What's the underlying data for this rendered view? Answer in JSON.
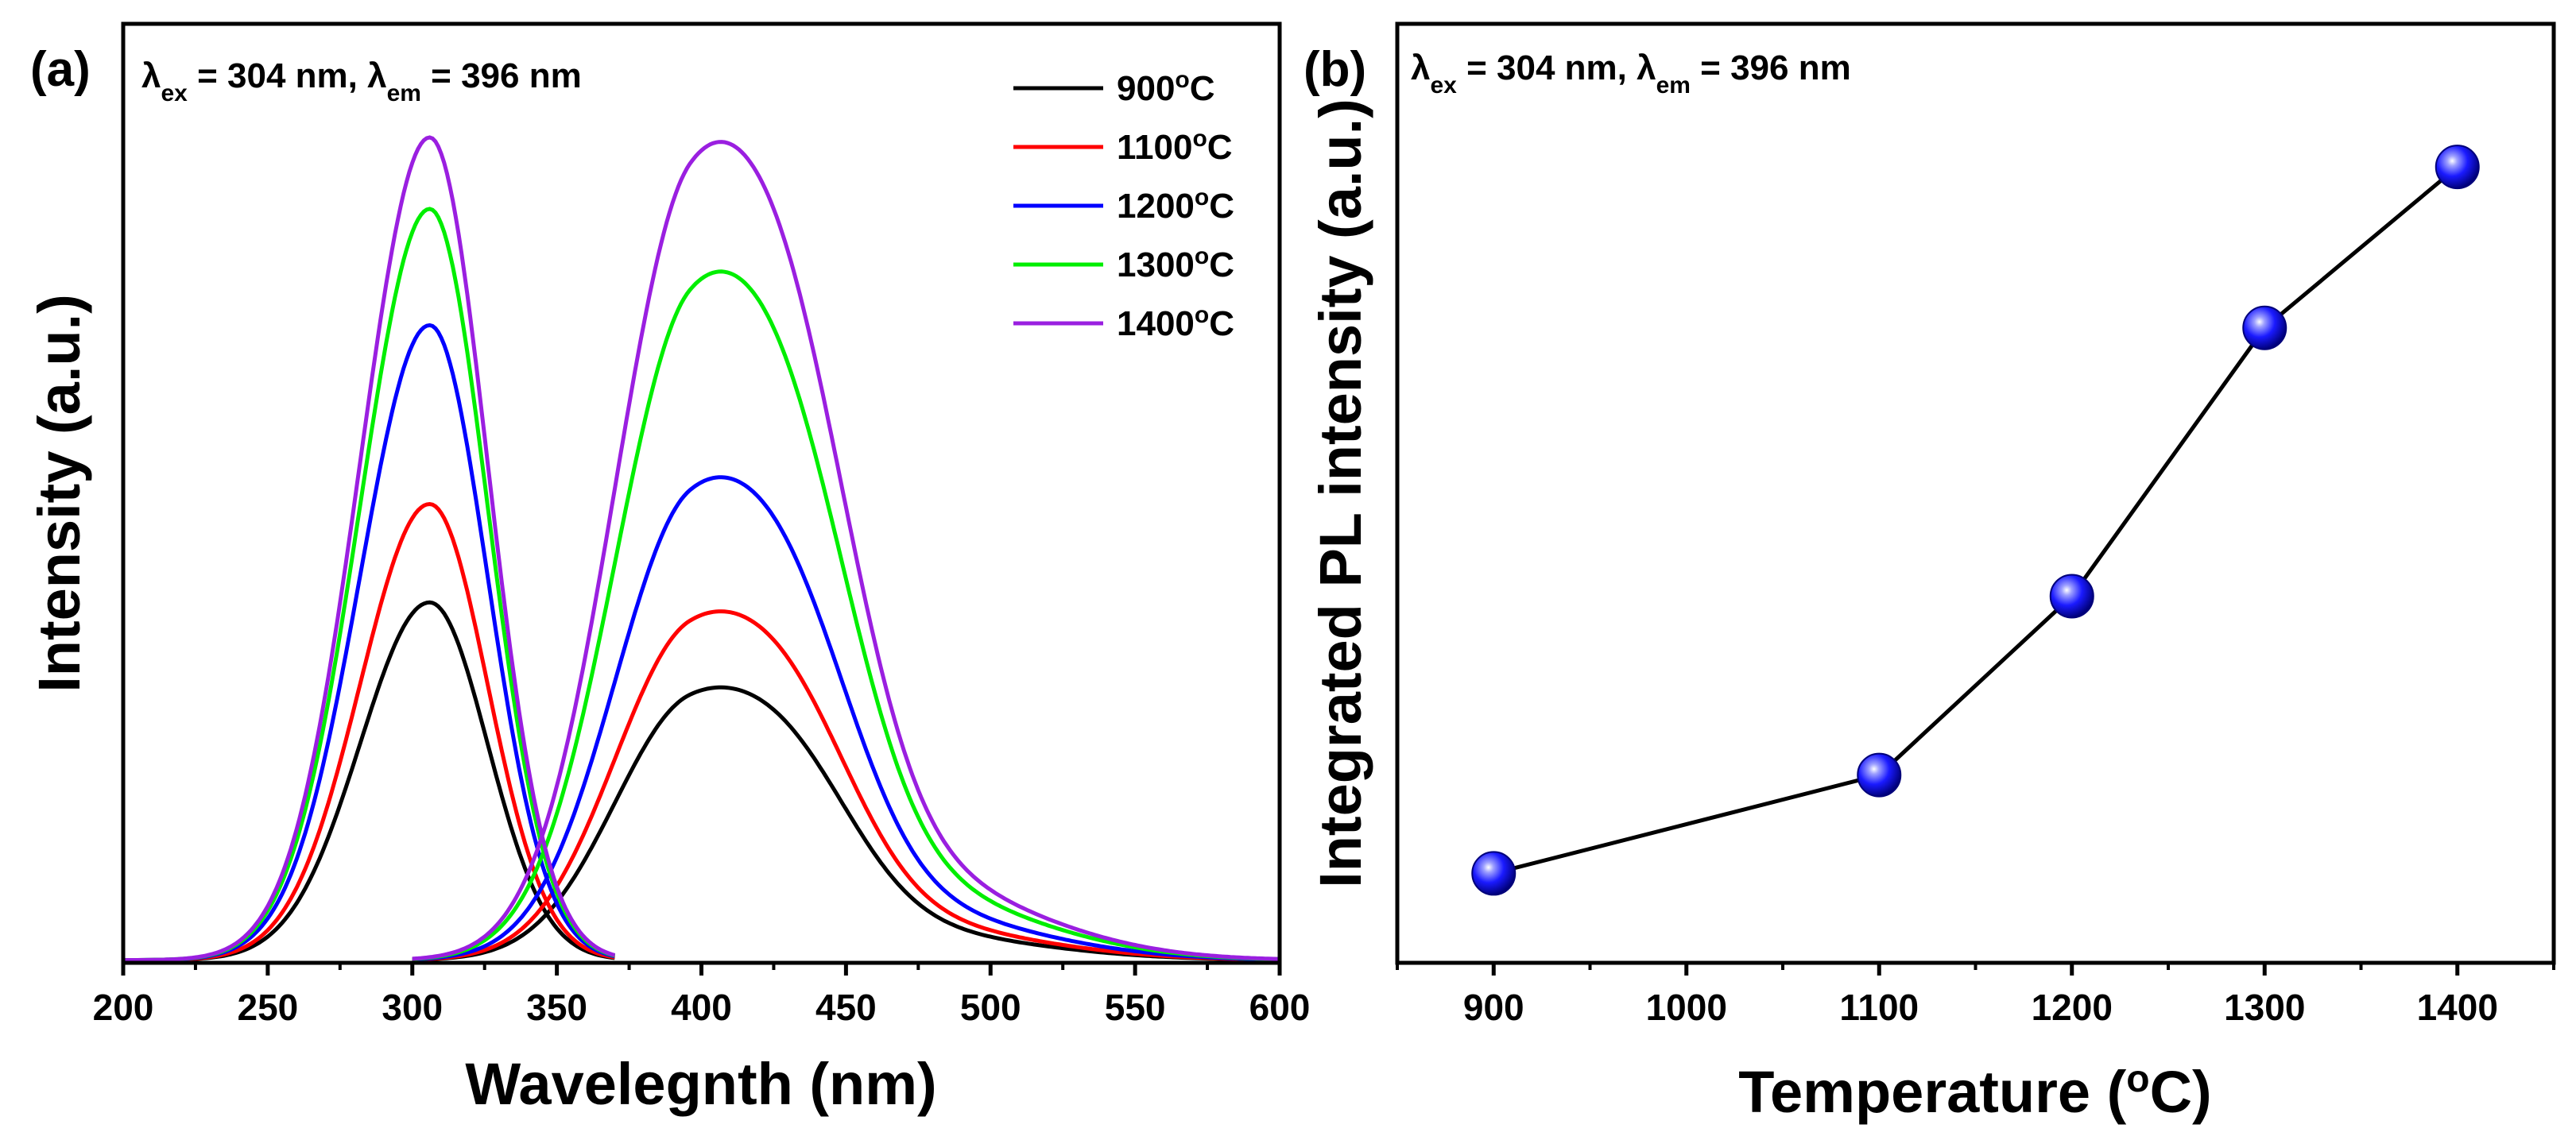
{
  "chart_data": [
    {
      "panel": "(a)",
      "type": "line",
      "annotation": {
        "main": "λ",
        "parts": [
          {
            "t": "λ",
            "sub": "ex"
          },
          {
            "t": " = 304 nm, "
          },
          {
            "t": "λ",
            "sub": "em"
          },
          {
            "t": " = 396 nm"
          }
        ]
      },
      "xlabel": "Wavelegnth (nm)",
      "ylabel": "Intensity (a.u.)",
      "xlim": [
        200,
        600
      ],
      "ylim": [
        0,
        1.05
      ],
      "xticks": [
        200,
        250,
        300,
        350,
        400,
        450,
        500,
        550,
        600
      ],
      "y_tick_labels": false,
      "legend": {
        "placement": "top-right"
      },
      "excitation_range": [
        200,
        370
      ],
      "emission_range": [
        300,
        600
      ],
      "series": [
        {
          "name": "900",
          "unit": "oC",
          "color": "#000000",
          "exc_peak": 0.4,
          "em_peak": 0.305
        },
        {
          "name": "1100",
          "unit": "oC",
          "color": "#ff0000",
          "exc_peak": 0.51,
          "em_peak": 0.39
        },
        {
          "name": "1200",
          "unit": "oC",
          "color": "#0000ff",
          "exc_peak": 0.71,
          "em_peak": 0.54
        },
        {
          "name": "1300",
          "unit": "oC",
          "color": "#00ee00",
          "exc_peak": 0.84,
          "em_peak": 0.77
        },
        {
          "name": "1400",
          "unit": "oC",
          "color": "#9a1fe0",
          "exc_peak": 0.92,
          "em_peak": 0.915
        }
      ]
    },
    {
      "panel": "(b)",
      "type": "scatter",
      "annotation": {
        "parts": [
          {
            "t": "λ",
            "sub": "ex"
          },
          {
            "t": " = 304 nm, "
          },
          {
            "t": "λ",
            "sub": "em"
          },
          {
            "t": " = 396 nm"
          }
        ]
      },
      "xlabel": "Temperature (",
      "xlabel_sup": "o",
      "xlabel_end": "C)",
      "ylabel": "Integrated PL intensity (a.u.)",
      "xlim": [
        850,
        1450
      ],
      "ylim": [
        0,
        1.05
      ],
      "xticks": [
        900,
        1000,
        1100,
        1200,
        1300,
        1400
      ],
      "y_tick_labels": false,
      "marker_color": "#1a1aff",
      "x": [
        900,
        1100,
        1200,
        1300,
        1400
      ],
      "y": [
        0.1,
        0.21,
        0.41,
        0.71,
        0.89
      ]
    }
  ]
}
